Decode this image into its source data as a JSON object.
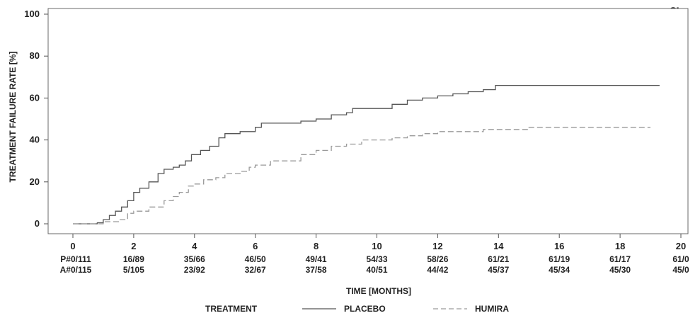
{
  "chart_data": {
    "type": "line",
    "title": "",
    "xlabel": "TIME [MONTHS]",
    "ylabel": "TREATMENT FAILURE RATE [%]",
    "xlim": [
      0,
      20
    ],
    "ylim": [
      0,
      100
    ],
    "x_ticks": [
      0,
      2,
      4,
      6,
      8,
      10,
      12,
      14,
      16,
      18,
      20
    ],
    "y_ticks": [
      0,
      20,
      40,
      60,
      80,
      100
    ],
    "grid": false,
    "legend": {
      "title": "TREATMENT",
      "position": "bottom"
    },
    "series": [
      {
        "name": "PLACEBO",
        "color": "#555555",
        "line_style": "solid",
        "points": [
          [
            0,
            0
          ],
          [
            0.8,
            0.5
          ],
          [
            1.0,
            2
          ],
          [
            1.2,
            4
          ],
          [
            1.4,
            6
          ],
          [
            1.6,
            8
          ],
          [
            1.8,
            11
          ],
          [
            2.0,
            15
          ],
          [
            2.2,
            17
          ],
          [
            2.5,
            20
          ],
          [
            2.8,
            24
          ],
          [
            3.0,
            26
          ],
          [
            3.3,
            27
          ],
          [
            3.5,
            28
          ],
          [
            3.7,
            30
          ],
          [
            3.9,
            33
          ],
          [
            4.2,
            35
          ],
          [
            4.5,
            37
          ],
          [
            4.8,
            41
          ],
          [
            5.0,
            43
          ],
          [
            5.5,
            44
          ],
          [
            6.0,
            46
          ],
          [
            6.2,
            48
          ],
          [
            7.0,
            48
          ],
          [
            7.5,
            49
          ],
          [
            8.0,
            50
          ],
          [
            8.5,
            52
          ],
          [
            9.0,
            53
          ],
          [
            9.2,
            55
          ],
          [
            10.0,
            55
          ],
          [
            10.5,
            57
          ],
          [
            11.0,
            59
          ],
          [
            11.5,
            60
          ],
          [
            12.0,
            61
          ],
          [
            12.5,
            62
          ],
          [
            13.0,
            63
          ],
          [
            13.5,
            64
          ],
          [
            13.9,
            66
          ],
          [
            14.0,
            66
          ],
          [
            19.3,
            66
          ]
        ]
      },
      {
        "name": "HUMIRA",
        "color": "#9a9a9a",
        "line_style": "dashed",
        "points": [
          [
            0,
            0
          ],
          [
            1.0,
            1
          ],
          [
            1.5,
            2
          ],
          [
            1.8,
            5
          ],
          [
            2.0,
            6
          ],
          [
            2.5,
            8
          ],
          [
            3.0,
            11
          ],
          [
            3.3,
            13
          ],
          [
            3.5,
            15
          ],
          [
            3.8,
            18
          ],
          [
            4.0,
            19
          ],
          [
            4.3,
            21
          ],
          [
            4.7,
            22
          ],
          [
            5.0,
            24
          ],
          [
            5.5,
            25
          ],
          [
            5.8,
            27
          ],
          [
            6.0,
            28
          ],
          [
            6.5,
            30
          ],
          [
            7.0,
            30
          ],
          [
            7.5,
            33
          ],
          [
            8.0,
            35
          ],
          [
            8.5,
            37
          ],
          [
            9.0,
            38
          ],
          [
            9.5,
            40
          ],
          [
            10.0,
            40
          ],
          [
            10.5,
            41
          ],
          [
            11.0,
            42
          ],
          [
            11.5,
            43
          ],
          [
            12.0,
            44
          ],
          [
            12.5,
            44
          ],
          [
            13.0,
            44
          ],
          [
            13.5,
            45
          ],
          [
            14.0,
            45
          ],
          [
            15.0,
            46
          ],
          [
            16.0,
            46
          ],
          [
            17.0,
            46
          ],
          [
            18.0,
            46
          ],
          [
            19.0,
            46
          ]
        ]
      }
    ],
    "at_risk": {
      "x": [
        0,
        2,
        4,
        6,
        8,
        10,
        12,
        14,
        16,
        18,
        20
      ],
      "rows": [
        {
          "label": "P#",
          "values": [
            "0/111",
            "16/89",
            "35/66",
            "46/50",
            "49/41",
            "54/33",
            "58/26",
            "61/21",
            "61/19",
            "61/17",
            "61/0"
          ]
        },
        {
          "label": "A#",
          "values": [
            "0/115",
            "5/105",
            "23/92",
            "32/67",
            "37/58",
            "40/51",
            "44/42",
            "45/37",
            "45/34",
            "45/30",
            "45/0"
          ]
        }
      ]
    }
  },
  "page": {
    "corner_glyph": "g"
  }
}
